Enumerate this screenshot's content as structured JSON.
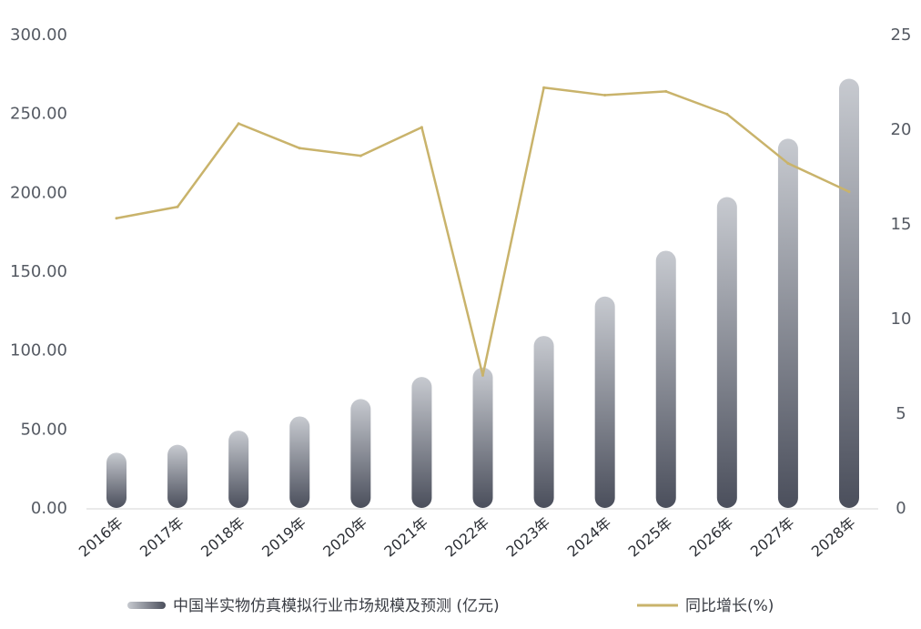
{
  "chart_data": {
    "type": "bar+line",
    "categories": [
      "2016年",
      "2017年",
      "2018年",
      "2019年",
      "2020年",
      "2021年",
      "2022年",
      "2023年",
      "2024年",
      "2025年",
      "2026年",
      "2027年",
      "2028年"
    ],
    "series": [
      {
        "name": "中国半实物仿真模拟行业市场规模及预测 (亿元)",
        "type": "bar",
        "axis": "left",
        "values": [
          35,
          40,
          49,
          58,
          69,
          83,
          89,
          109,
          134,
          163,
          197,
          234,
          272
        ]
      },
      {
        "name": "同比增长(%)",
        "type": "line",
        "axis": "right",
        "values": [
          15.3,
          15.9,
          20.3,
          19.0,
          18.6,
          20.1,
          7.0,
          22.2,
          21.8,
          22.0,
          20.8,
          18.2,
          16.7
        ]
      }
    ],
    "y_left": {
      "ylim": [
        0,
        300
      ],
      "ticks": [
        "300.00",
        "250.00",
        "200.00",
        "150.00",
        "100.00",
        "50.00",
        "0.00"
      ],
      "tick_values": [
        300,
        250,
        200,
        150,
        100,
        50,
        0
      ]
    },
    "y_right": {
      "ylim": [
        0,
        25
      ],
      "ticks": [
        "25",
        "20",
        "15",
        "10",
        "5",
        "0"
      ],
      "tick_values": [
        25,
        20,
        15,
        10,
        5,
        0
      ]
    },
    "grid": false,
    "legend_position": "bottom",
    "colors": {
      "bar_top": "#c7cad0",
      "bar_bottom": "#4b4f5c",
      "line": "#c9b36b",
      "axis": "#d4d4d4"
    }
  }
}
